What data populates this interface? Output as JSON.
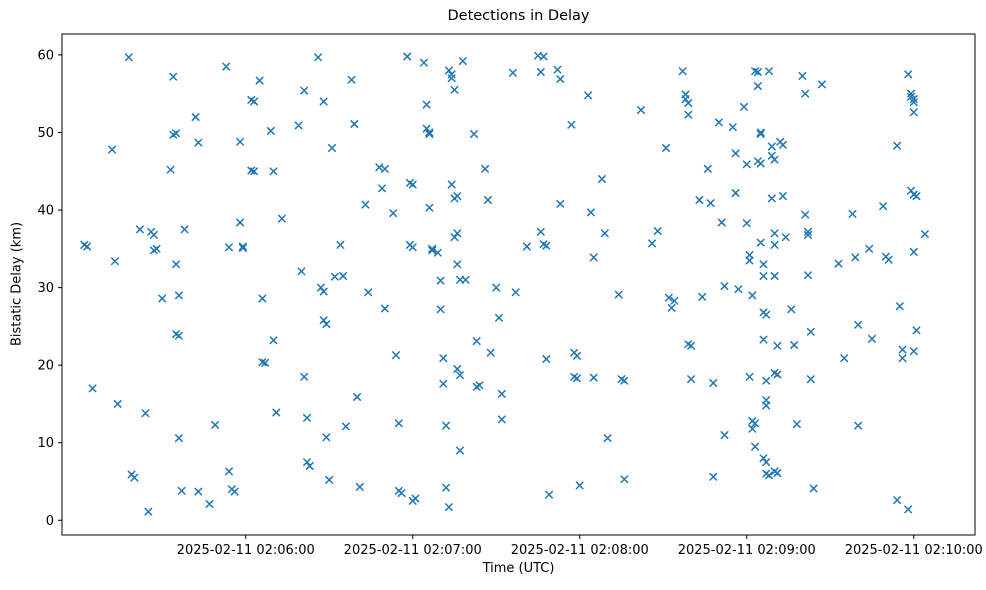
{
  "figure": {
    "background": "#ffffff"
  },
  "chart_data": {
    "type": "scatter",
    "title": "Detections in Delay",
    "xlabel": "Time (UTC)",
    "ylabel": "Bistatic Delay (km)",
    "marker": "x",
    "marker_color": "#1f77b4",
    "grid": false,
    "legend": "none",
    "x_unit": "seconds after 2025-02-11 02:05:00",
    "xlim": [
      -6,
      322
    ],
    "ylim": [
      -1.9,
      62.7
    ],
    "x_ticks": [
      {
        "t": 60,
        "label": "2025-02-11 02:06:00"
      },
      {
        "t": 120,
        "label": "2025-02-11 02:07:00"
      },
      {
        "t": 180,
        "label": "2025-02-11 02:08:00"
      },
      {
        "t": 240,
        "label": "2025-02-11 02:09:00"
      },
      {
        "t": 300,
        "label": "2025-02-11 02:10:00"
      }
    ],
    "y_ticks": [
      0,
      10,
      20,
      30,
      40,
      50,
      60
    ],
    "points": [
      [
        2,
        35.5
      ],
      [
        3,
        35.3
      ],
      [
        5,
        17.0
      ],
      [
        12,
        47.8
      ],
      [
        13,
        33.4
      ],
      [
        14,
        15.0
      ],
      [
        18,
        59.7
      ],
      [
        19,
        5.9
      ],
      [
        20,
        5.5
      ],
      [
        22,
        37.5
      ],
      [
        24,
        13.8
      ],
      [
        25,
        1.1
      ],
      [
        26,
        37.2
      ],
      [
        27,
        36.8
      ],
      [
        27,
        34.8
      ],
      [
        28,
        35.0
      ],
      [
        30,
        28.6
      ],
      [
        33,
        45.2
      ],
      [
        34,
        57.2
      ],
      [
        34,
        49.7
      ],
      [
        35,
        49.9
      ],
      [
        35,
        33.0
      ],
      [
        36,
        29.0
      ],
      [
        35,
        24.0
      ],
      [
        36,
        23.8
      ],
      [
        36,
        10.6
      ],
      [
        37,
        3.8
      ],
      [
        38,
        37.5
      ],
      [
        42,
        52.0
      ],
      [
        43,
        48.7
      ],
      [
        43,
        3.7
      ],
      [
        47,
        2.1
      ],
      [
        49,
        12.3
      ],
      [
        53,
        58.5
      ],
      [
        54,
        35.2
      ],
      [
        54,
        6.3
      ],
      [
        55,
        4.0
      ],
      [
        56,
        3.7
      ],
      [
        58,
        48.8
      ],
      [
        58,
        38.4
      ],
      [
        59,
        35.3
      ],
      [
        59,
        35.1
      ],
      [
        62,
        54.2
      ],
      [
        63,
        54.0
      ],
      [
        62,
        45.1
      ],
      [
        63,
        45.0
      ],
      [
        65,
        56.7
      ],
      [
        66,
        28.6
      ],
      [
        66,
        20.4
      ],
      [
        67,
        20.3
      ],
      [
        69,
        50.2
      ],
      [
        70,
        45.0
      ],
      [
        70,
        23.2
      ],
      [
        71,
        13.9
      ],
      [
        73,
        38.9
      ],
      [
        79,
        50.9
      ],
      [
        81,
        55.4
      ],
      [
        80,
        32.1
      ],
      [
        81,
        18.5
      ],
      [
        82,
        13.2
      ],
      [
        82,
        7.5
      ],
      [
        83,
        7.0
      ],
      [
        86,
        59.7
      ],
      [
        88,
        54.0
      ],
      [
        87,
        30.0
      ],
      [
        88,
        29.5
      ],
      [
        88,
        25.8
      ],
      [
        89,
        25.3
      ],
      [
        89,
        10.7
      ],
      [
        90,
        5.2
      ],
      [
        91,
        48.0
      ],
      [
        92,
        31.4
      ],
      [
        94,
        35.5
      ],
      [
        95,
        31.5
      ],
      [
        96,
        12.1
      ],
      [
        98,
        56.8
      ],
      [
        99,
        51.1
      ],
      [
        100,
        15.9
      ],
      [
        101,
        4.3
      ],
      [
        103,
        40.7
      ],
      [
        104,
        29.4
      ],
      [
        108,
        45.5
      ],
      [
        110,
        45.3
      ],
      [
        109,
        42.8
      ],
      [
        110,
        27.3
      ],
      [
        113,
        39.6
      ],
      [
        114,
        21.3
      ],
      [
        115,
        12.5
      ],
      [
        115,
        3.8
      ],
      [
        116,
        3.5
      ],
      [
        118,
        59.8
      ],
      [
        119,
        43.5
      ],
      [
        120,
        43.3
      ],
      [
        119,
        35.5
      ],
      [
        120,
        35.2
      ],
      [
        120,
        2.5
      ],
      [
        121,
        2.8
      ],
      [
        124,
        59.0
      ],
      [
        125,
        53.6
      ],
      [
        125,
        50.5
      ],
      [
        126,
        50.0
      ],
      [
        126,
        49.8
      ],
      [
        126,
        40.3
      ],
      [
        127,
        35.0
      ],
      [
        127,
        34.8
      ],
      [
        129,
        34.5
      ],
      [
        130,
        30.9
      ],
      [
        130,
        27.2
      ],
      [
        131,
        20.9
      ],
      [
        131,
        17.6
      ],
      [
        132,
        12.2
      ],
      [
        132,
        4.2
      ],
      [
        133,
        1.7
      ],
      [
        133,
        58.0
      ],
      [
        134,
        57.5
      ],
      [
        134,
        57.0
      ],
      [
        135,
        55.5
      ],
      [
        134,
        43.3
      ],
      [
        135,
        41.5
      ],
      [
        136,
        41.8
      ],
      [
        135,
        36.5
      ],
      [
        136,
        37.0
      ],
      [
        136,
        33.0
      ],
      [
        137,
        31.0
      ],
      [
        136,
        19.5
      ],
      [
        137,
        18.7
      ],
      [
        137,
        9.0
      ],
      [
        138,
        59.2
      ],
      [
        139,
        31.0
      ],
      [
        142,
        49.8
      ],
      [
        143,
        23.1
      ],
      [
        143,
        17.2
      ],
      [
        144,
        17.4
      ],
      [
        146,
        45.3
      ],
      [
        147,
        41.3
      ],
      [
        148,
        21.6
      ],
      [
        150,
        30.0
      ],
      [
        151,
        26.1
      ],
      [
        152,
        16.3
      ],
      [
        152,
        13.0
      ],
      [
        156,
        57.7
      ],
      [
        157,
        29.4
      ],
      [
        161,
        35.3
      ],
      [
        165,
        59.9
      ],
      [
        167,
        59.8
      ],
      [
        166,
        57.8
      ],
      [
        166,
        37.2
      ],
      [
        167,
        35.6
      ],
      [
        168,
        35.4
      ],
      [
        168,
        20.8
      ],
      [
        169,
        3.3
      ],
      [
        172,
        58.1
      ],
      [
        173,
        56.9
      ],
      [
        173,
        40.8
      ],
      [
        177,
        51.0
      ],
      [
        178,
        21.6
      ],
      [
        179,
        21.2
      ],
      [
        178,
        18.5
      ],
      [
        179,
        18.3
      ],
      [
        180,
        4.5
      ],
      [
        183,
        54.8
      ],
      [
        184,
        39.7
      ],
      [
        185,
        33.9
      ],
      [
        185,
        18.4
      ],
      [
        188,
        44.0
      ],
      [
        189,
        37.0
      ],
      [
        190,
        10.6
      ],
      [
        194,
        29.1
      ],
      [
        195,
        18.2
      ],
      [
        196,
        18.0
      ],
      [
        196,
        5.3
      ],
      [
        202,
        52.9
      ],
      [
        206,
        35.7
      ],
      [
        208,
        37.3
      ],
      [
        211,
        48.0
      ],
      [
        212,
        28.7
      ],
      [
        213,
        27.4
      ],
      [
        214,
        28.3
      ],
      [
        217,
        57.9
      ],
      [
        218,
        54.9
      ],
      [
        218,
        54.3
      ],
      [
        219,
        53.8
      ],
      [
        219,
        52.3
      ],
      [
        219,
        22.7
      ],
      [
        220,
        22.5
      ],
      [
        220,
        18.2
      ],
      [
        223,
        41.3
      ],
      [
        224,
        28.8
      ],
      [
        226,
        45.3
      ],
      [
        227,
        40.9
      ],
      [
        228,
        17.7
      ],
      [
        228,
        5.6
      ],
      [
        230,
        51.3
      ],
      [
        231,
        38.4
      ],
      [
        232,
        30.2
      ],
      [
        232,
        11.0
      ],
      [
        235,
        50.7
      ],
      [
        236,
        47.3
      ],
      [
        236,
        42.2
      ],
      [
        237,
        29.8
      ],
      [
        239,
        53.3
      ],
      [
        240,
        45.9
      ],
      [
        240,
        38.3
      ],
      [
        241,
        34.2
      ],
      [
        241,
        33.5
      ],
      [
        242,
        29.0
      ],
      [
        241,
        18.5
      ],
      [
        242,
        12.8
      ],
      [
        243,
        12.5
      ],
      [
        242,
        11.8
      ],
      [
        243,
        9.5
      ],
      [
        243,
        57.9
      ],
      [
        244,
        57.8
      ],
      [
        244,
        56.0
      ],
      [
        245,
        50.0
      ],
      [
        245,
        49.8
      ],
      [
        244,
        46.3
      ],
      [
        245,
        46.0
      ],
      [
        245,
        35.8
      ],
      [
        246,
        33.0
      ],
      [
        246,
        31.5
      ],
      [
        246,
        26.8
      ],
      [
        247,
        26.5
      ],
      [
        246,
        23.3
      ],
      [
        247,
        18.0
      ],
      [
        247,
        15.5
      ],
      [
        247,
        14.8
      ],
      [
        246,
        8.0
      ],
      [
        247,
        7.5
      ],
      [
        247,
        6.0
      ],
      [
        248,
        5.8
      ],
      [
        248,
        57.9
      ],
      [
        249,
        48.2
      ],
      [
        249,
        47.0
      ],
      [
        250,
        46.5
      ],
      [
        249,
        41.5
      ],
      [
        250,
        37.0
      ],
      [
        250,
        35.5
      ],
      [
        250,
        31.5
      ],
      [
        251,
        22.5
      ],
      [
        250,
        19.0
      ],
      [
        251,
        18.8
      ],
      [
        250,
        6.3
      ],
      [
        251,
        6.1
      ],
      [
        252,
        48.8
      ],
      [
        253,
        48.4
      ],
      [
        253,
        41.8
      ],
      [
        254,
        36.5
      ],
      [
        256,
        27.2
      ],
      [
        257,
        22.6
      ],
      [
        258,
        12.4
      ],
      [
        260,
        57.3
      ],
      [
        261,
        55.0
      ],
      [
        261,
        39.4
      ],
      [
        262,
        37.2
      ],
      [
        262,
        36.8
      ],
      [
        262,
        31.6
      ],
      [
        263,
        24.3
      ],
      [
        263,
        18.2
      ],
      [
        264,
        4.1
      ],
      [
        267,
        56.2
      ],
      [
        273,
        33.1
      ],
      [
        275,
        20.9
      ],
      [
        278,
        39.5
      ],
      [
        279,
        33.9
      ],
      [
        280,
        25.2
      ],
      [
        280,
        12.2
      ],
      [
        284,
        35.0
      ],
      [
        285,
        23.4
      ],
      [
        289,
        40.5
      ],
      [
        290,
        34.0
      ],
      [
        291,
        33.6
      ],
      [
        294,
        48.3
      ],
      [
        295,
        27.6
      ],
      [
        296,
        22.0
      ],
      [
        296,
        20.9
      ],
      [
        294,
        2.6
      ],
      [
        298,
        57.5
      ],
      [
        299,
        55.0
      ],
      [
        299,
        54.6
      ],
      [
        300,
        54.3
      ],
      [
        300,
        53.9
      ],
      [
        300,
        52.6
      ],
      [
        299,
        42.5
      ],
      [
        300,
        42.0
      ],
      [
        301,
        41.8
      ],
      [
        300,
        34.6
      ],
      [
        301,
        24.5
      ],
      [
        300,
        21.8
      ],
      [
        298,
        1.4
      ],
      [
        304,
        36.9
      ]
    ]
  }
}
